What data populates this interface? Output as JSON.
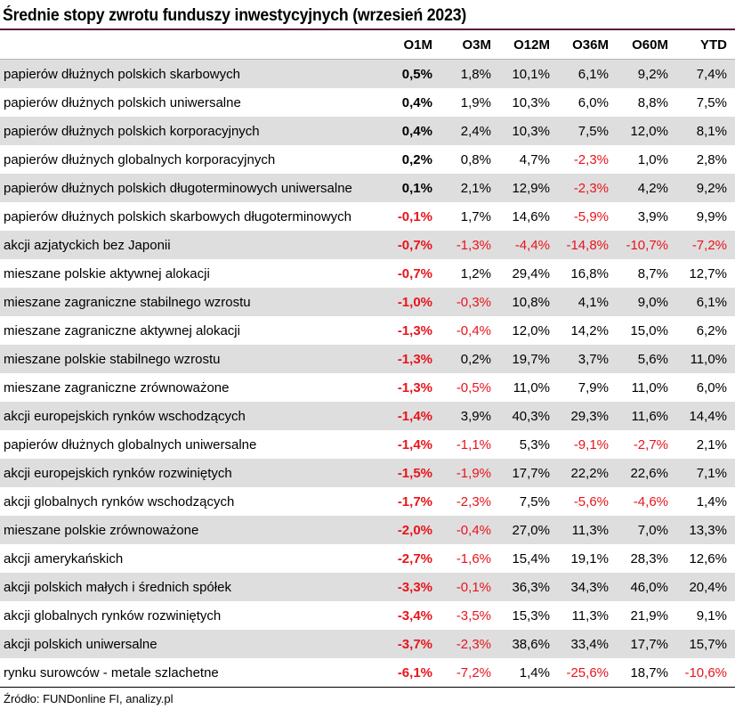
{
  "chart_data": {
    "type": "table",
    "title": "Średnie stopy zwrotu funduszy inwestycyjnych (wrzesień 2023)",
    "columns": [
      "O1M",
      "O3M",
      "O12M",
      "O36M",
      "O60M",
      "YTD"
    ],
    "rows": [
      {
        "label": "papierów dłużnych polskich skarbowych",
        "values": [
          "0,5%",
          "1,8%",
          "10,1%",
          "6,1%",
          "9,2%",
          "7,4%"
        ]
      },
      {
        "label": "papierów dłużnych polskich uniwersalne",
        "values": [
          "0,4%",
          "1,9%",
          "10,3%",
          "6,0%",
          "8,8%",
          "7,5%"
        ]
      },
      {
        "label": "papierów dłużnych polskich korporacyjnych",
        "values": [
          "0,4%",
          "2,4%",
          "10,3%",
          "7,5%",
          "12,0%",
          "8,1%"
        ]
      },
      {
        "label": "papierów dłużnych globalnych korporacyjnych",
        "values": [
          "0,2%",
          "0,8%",
          "4,7%",
          "-2,3%",
          "1,0%",
          "2,8%"
        ]
      },
      {
        "label": "papierów dłużnych polskich długoterminowych uniwersalne",
        "values": [
          "0,1%",
          "2,1%",
          "12,9%",
          "-2,3%",
          "4,2%",
          "9,2%"
        ]
      },
      {
        "label": "papierów dłużnych polskich skarbowych długoterminowych",
        "values": [
          "-0,1%",
          "1,7%",
          "14,6%",
          "-5,9%",
          "3,9%",
          "9,9%"
        ]
      },
      {
        "label": "akcji azjatyckich bez Japonii",
        "values": [
          "-0,7%",
          "-1,3%",
          "-4,4%",
          "-14,8%",
          "-10,7%",
          "-7,2%"
        ]
      },
      {
        "label": "mieszane polskie aktywnej alokacji",
        "values": [
          "-0,7%",
          "1,2%",
          "29,4%",
          "16,8%",
          "8,7%",
          "12,7%"
        ]
      },
      {
        "label": "mieszane zagraniczne stabilnego wzrostu",
        "values": [
          "-1,0%",
          "-0,3%",
          "10,8%",
          "4,1%",
          "9,0%",
          "6,1%"
        ]
      },
      {
        "label": "mieszane zagraniczne aktywnej alokacji",
        "values": [
          "-1,3%",
          "-0,4%",
          "12,0%",
          "14,2%",
          "15,0%",
          "6,2%"
        ]
      },
      {
        "label": "mieszane polskie stabilnego wzrostu",
        "values": [
          "-1,3%",
          "0,2%",
          "19,7%",
          "3,7%",
          "5,6%",
          "11,0%"
        ]
      },
      {
        "label": "mieszane zagraniczne zrównoważone",
        "values": [
          "-1,3%",
          "-0,5%",
          "11,0%",
          "7,9%",
          "11,0%",
          "6,0%"
        ]
      },
      {
        "label": "akcji europejskich rynków wschodzących",
        "values": [
          "-1,4%",
          "3,9%",
          "40,3%",
          "29,3%",
          "11,6%",
          "14,4%"
        ]
      },
      {
        "label": "papierów dłużnych globalnych uniwersalne",
        "values": [
          "-1,4%",
          "-1,1%",
          "5,3%",
          "-9,1%",
          "-2,7%",
          "2,1%"
        ]
      },
      {
        "label": "akcji europejskich rynków rozwiniętych",
        "values": [
          "-1,5%",
          "-1,9%",
          "17,7%",
          "22,2%",
          "22,6%",
          "7,1%"
        ]
      },
      {
        "label": "akcji globalnych rynków wschodzących",
        "values": [
          "-1,7%",
          "-2,3%",
          "7,5%",
          "-5,6%",
          "-4,6%",
          "1,4%"
        ]
      },
      {
        "label": "mieszane polskie zrównoważone",
        "values": [
          "-2,0%",
          "-0,4%",
          "27,0%",
          "11,3%",
          "7,0%",
          "13,3%"
        ]
      },
      {
        "label": "akcji amerykańskich",
        "values": [
          "-2,7%",
          "-1,6%",
          "15,4%",
          "19,1%",
          "28,3%",
          "12,6%"
        ]
      },
      {
        "label": "akcji polskich małych i średnich spółek",
        "values": [
          "-3,3%",
          "-0,1%",
          "36,3%",
          "34,3%",
          "46,0%",
          "20,4%"
        ]
      },
      {
        "label": "akcji globalnych rynków rozwiniętych",
        "values": [
          "-3,4%",
          "-3,5%",
          "15,3%",
          "11,3%",
          "21,9%",
          "9,1%"
        ]
      },
      {
        "label": "akcji polskich uniwersalne",
        "values": [
          "-3,7%",
          "-2,3%",
          "38,6%",
          "33,4%",
          "17,7%",
          "15,7%"
        ]
      },
      {
        "label": "rynku surowców - metale szlachetne",
        "values": [
          "-6,1%",
          "-7,2%",
          "1,4%",
          "-25,6%",
          "18,7%",
          "-10,6%"
        ]
      }
    ],
    "source": "Źródło: FUNDonline FI, analizy.pl",
    "colors": {
      "negative": "#e8141c",
      "positive": "#000000",
      "row_shade": "#dedede",
      "title_rule": "#5a1a3c"
    }
  }
}
